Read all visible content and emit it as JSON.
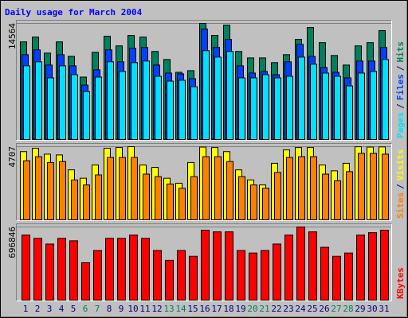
{
  "chart_data": [
    {
      "type": "bar",
      "title": "Daily usage for March 2004",
      "separator": "/",
      "ylim": [
        0,
        14564
      ],
      "yticks": [
        14564
      ],
      "series": [
        {
          "name": "Hits",
          "color": "#00805c",
          "values": [
            12270,
            12870,
            10870,
            12270,
            10470,
            7880,
            10970,
            12970,
            11770,
            13070,
            12870,
            11070,
            10070,
            8480,
            8680,
            14564,
            13070,
            14360,
            11070,
            10270,
            10270,
            9680,
            10670,
            12570,
            14060,
            12170,
            10570,
            9380,
            11770,
            12170,
            13670
          ]
        },
        {
          "name": "Files",
          "color": "#0040ff",
          "values": [
            10670,
            11270,
            9380,
            10670,
            9280,
            6880,
            8780,
            11270,
            9780,
            11470,
            11570,
            9380,
            8380,
            8280,
            7680,
            13870,
            11570,
            12570,
            9280,
            8380,
            8580,
            8180,
            9780,
            11970,
            10470,
            9080,
            8480,
            7780,
            9880,
            9880,
            11570
          ]
        },
        {
          "name": "Pages",
          "color": "#00e0ff",
          "values": [
            9280,
            9780,
            7780,
            9280,
            8180,
            6080,
            7880,
            9780,
            8580,
            9680,
            9880,
            7980,
            7380,
            7480,
            6680,
            11170,
            10370,
            11070,
            7780,
            7780,
            8180,
            7780,
            7980,
            10370,
            9480,
            8380,
            7980,
            6780,
            8380,
            8580,
            10070
          ]
        }
      ]
    },
    {
      "type": "bar",
      "separator": "/",
      "ylim": [
        0,
        4707
      ],
      "yticks": [
        4707
      ],
      "series": [
        {
          "name": "Visits",
          "color": "#ffff00",
          "values": [
            4390,
            4600,
            4230,
            4180,
            3230,
            2700,
            3540,
            4600,
            4650,
            4707,
            3540,
            3390,
            2700,
            2380,
            3700,
            4680,
            4650,
            4390,
            3230,
            2590,
            2270,
            3650,
            4500,
            4650,
            4650,
            3540,
            3170,
            3650,
            4700,
            4680,
            4690
          ]
        },
        {
          "name": "Sites",
          "color": "#ff8000",
          "values": [
            3810,
            4070,
            3700,
            3760,
            2590,
            2270,
            2910,
            4020,
            4020,
            4020,
            2960,
            2800,
            2330,
            2060,
            2800,
            4070,
            4070,
            3760,
            2800,
            2270,
            2060,
            3070,
            4020,
            4070,
            4070,
            2960,
            2540,
            3120,
            4280,
            4280,
            4230
          ]
        }
      ]
    },
    {
      "type": "bar",
      "ylim": [
        0,
        696846
      ],
      "yticks": [
        696846
      ],
      "categories": [
        "1",
        "2",
        "3",
        "4",
        "5",
        "6",
        "7",
        "8",
        "9",
        "10",
        "11",
        "12",
        "13",
        "14",
        "15",
        "16",
        "17",
        "18",
        "19",
        "20",
        "21",
        "22",
        "23",
        "24",
        "25",
        "26",
        "27",
        "28",
        "29",
        "30",
        "31"
      ],
      "category_colors": [
        "#000080",
        "#000080",
        "#000080",
        "#000080",
        "#000080",
        "#00805c",
        "#00805c",
        "#000080",
        "#000080",
        "#000080",
        "#000080",
        "#000080",
        "#00805c",
        "#00805c",
        "#000080",
        "#000080",
        "#000080",
        "#000080",
        "#000080",
        "#00805c",
        "#00805c",
        "#000080",
        "#000080",
        "#000080",
        "#000080",
        "#000080",
        "#00805c",
        "#00805c",
        "#000080",
        "#000080",
        "#000080"
      ],
      "series": [
        {
          "name": "KBytes",
          "color": "#ff0000",
          "values": [
            620300,
            589700,
            536100,
            589700,
            566700,
            359900,
            474800,
            589700,
            589700,
            620300,
            589700,
            474800,
            382900,
            474800,
            421200,
            666200,
            650900,
            650900,
            474800,
            451800,
            474800,
            536100,
            620300,
            696846,
            650900,
            505400,
            421200,
            451800,
            620300,
            643300,
            666200
          ]
        }
      ]
    }
  ]
}
